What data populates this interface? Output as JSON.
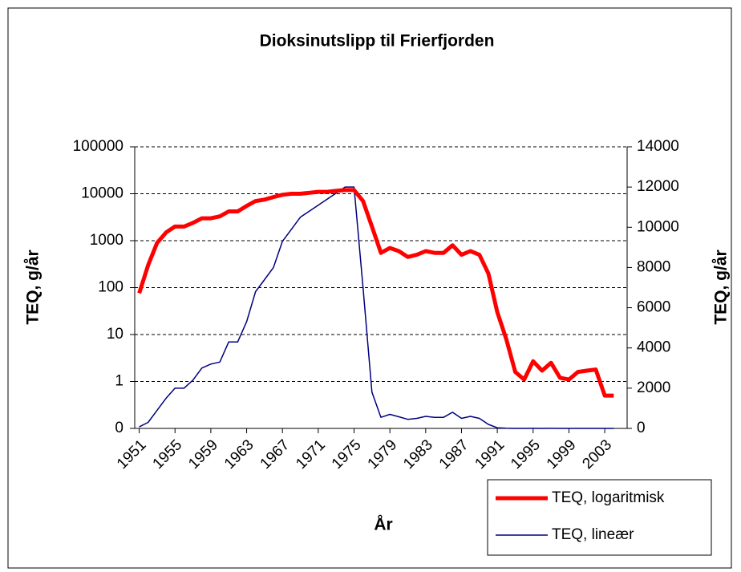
{
  "chart_data": {
    "type": "line",
    "title": "Dioksinutslipp til Frierfjorden",
    "x_label": "År",
    "y_label": "TEQ, g/år",
    "y2_label": "TEQ, g/år",
    "x": [
      1951,
      1952,
      1953,
      1954,
      1955,
      1956,
      1957,
      1958,
      1959,
      1960,
      1961,
      1962,
      1963,
      1964,
      1965,
      1966,
      1967,
      1968,
      1969,
      1970,
      1971,
      1972,
      1973,
      1974,
      1975,
      1976,
      1977,
      1978,
      1979,
      1980,
      1981,
      1982,
      1983,
      1984,
      1985,
      1986,
      1987,
      1988,
      1989,
      1990,
      1991,
      1992,
      1993,
      1994,
      1995,
      1996,
      1997,
      1998,
      1999,
      2000,
      2001,
      2002,
      2003,
      2004
    ],
    "xlim": [
      1950.5,
      2005.5
    ],
    "xticks": [
      1951,
      1955,
      1959,
      1963,
      1967,
      1971,
      1975,
      1979,
      1983,
      1987,
      1991,
      1995,
      1999,
      2003
    ],
    "ylim": [
      0.1,
      100000
    ],
    "yscale": "log",
    "yticks": [
      {
        "value": 0.1,
        "label": "0"
      },
      1,
      10,
      100,
      1000,
      10000,
      100000
    ],
    "y2lim": [
      0,
      14000
    ],
    "y2ticks": [
      0,
      2000,
      4000,
      6000,
      8000,
      10000,
      12000,
      14000
    ],
    "grid": true,
    "legend": "lower right",
    "series": [
      {
        "name": "TEQ, logaritmisk",
        "color": "#ff0000",
        "width": 5,
        "values": [
          76,
          300,
          900,
          1500,
          2000,
          2000,
          2400,
          3000,
          3000,
          3300,
          4200,
          4200,
          5500,
          7000,
          7500,
          8500,
          9500,
          10000,
          10000,
          10500,
          11000,
          11000,
          11500,
          12000,
          12000,
          7000,
          2000,
          550,
          700,
          600,
          450,
          500,
          600,
          550,
          550,
          800,
          500,
          600,
          500,
          200,
          30,
          8,
          1.6,
          1.1,
          2.7,
          1.7,
          2.5,
          1.2,
          1.1,
          1.6,
          1.7,
          1.8,
          0.5,
          0.5
        ]
      },
      {
        "name": "TEQ, lineær",
        "color": "#000080",
        "width": 1.5,
        "axis": "y2",
        "values": [
          76,
          300,
          900,
          1500,
          2000,
          2000,
          2400,
          3000,
          3200,
          3300,
          4300,
          4300,
          5300,
          6800,
          7400,
          8000,
          9300,
          9900,
          10500,
          10800,
          11100,
          11400,
          11700,
          12000,
          12000,
          7000,
          1800,
          550,
          700,
          580,
          450,
          500,
          600,
          550,
          550,
          800,
          500,
          600,
          500,
          200,
          30,
          8,
          1.6,
          1.1,
          2.7,
          1.7,
          2.5,
          1.2,
          1.1,
          1.6,
          1.7,
          1.8,
          0.5,
          0.5
        ]
      }
    ]
  }
}
